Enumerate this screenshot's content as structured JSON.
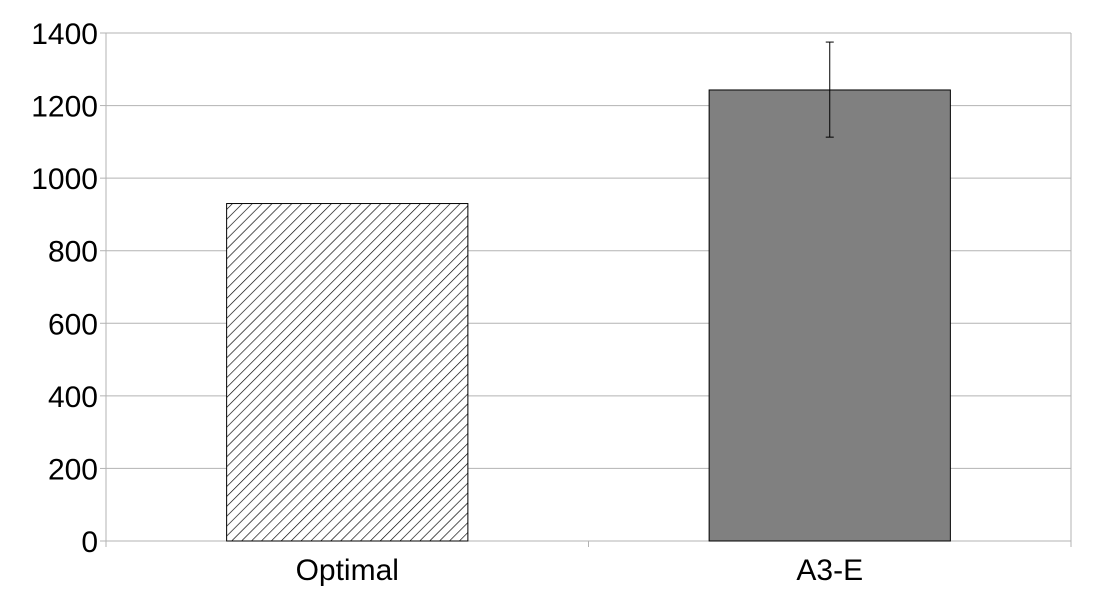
{
  "chart_data": {
    "type": "bar",
    "title": "",
    "xlabel": "",
    "ylabel": "",
    "categories": [
      "Optimal",
      "A3-E"
    ],
    "values": [
      930,
      1243
    ],
    "error_bars": [
      null,
      {
        "low": 1113,
        "high": 1375
      }
    ],
    "ylim": [
      0,
      1400
    ],
    "yticks": [
      "0",
      "200",
      "400",
      "600",
      "800",
      "1000",
      "1200",
      "1400"
    ],
    "grid": true,
    "legend": "none",
    "bar_styles": [
      {
        "fill": "hatched",
        "color": "#000000"
      },
      {
        "fill": "solid",
        "color": "#808080"
      }
    ],
    "colors": {
      "grid": "#b3b3b3",
      "outline": "#000000",
      "axis": "#b3b3b3"
    }
  }
}
